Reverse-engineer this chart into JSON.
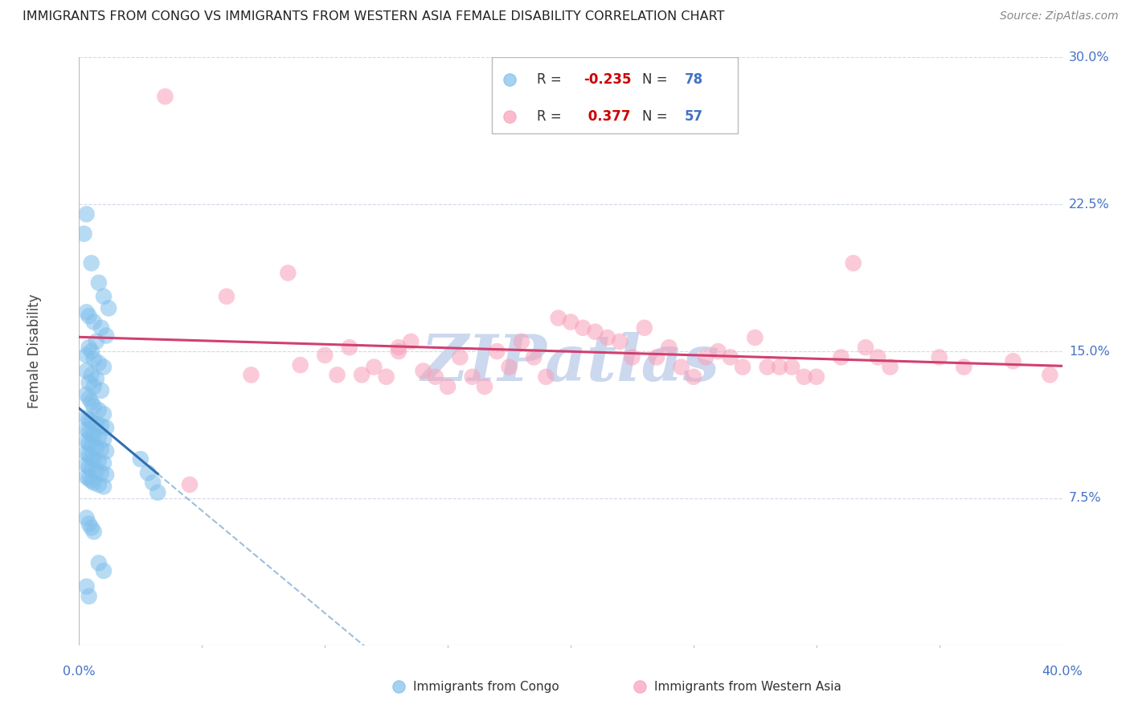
{
  "title": "IMMIGRANTS FROM CONGO VS IMMIGRANTS FROM WESTERN ASIA FEMALE DISABILITY CORRELATION CHART",
  "source": "Source: ZipAtlas.com",
  "ylabel": "Female Disability",
  "xlim": [
    0.0,
    0.4
  ],
  "ylim": [
    0.0,
    0.3
  ],
  "yticks": [
    0.0,
    0.075,
    0.15,
    0.225,
    0.3
  ],
  "ytick_labels": [
    "",
    "7.5%",
    "15.0%",
    "22.5%",
    "30.0%"
  ],
  "xtick_labels_show": [
    "0.0%",
    "40.0%"
  ],
  "legend_r1": "R = -0.235",
  "legend_n1": "N = 78",
  "legend_r2": "R =  0.377",
  "legend_n2": "N = 57",
  "color_congo": "#7fbfeb",
  "color_western_asia": "#f9a0b8",
  "color_line_congo": "#3070b0",
  "color_line_western_asia": "#d04070",
  "color_grid": "#d0d8ea",
  "background_color": "#ffffff",
  "watermark_text": "ZIPatlas",
  "watermark_color": "#ccd8ee",
  "congo_x": [
    0.002,
    0.003,
    0.005,
    0.008,
    0.01,
    0.012,
    0.003,
    0.004,
    0.006,
    0.009,
    0.011,
    0.007,
    0.004,
    0.005,
    0.003,
    0.006,
    0.008,
    0.01,
    0.003,
    0.005,
    0.007,
    0.004,
    0.006,
    0.009,
    0.003,
    0.004,
    0.005,
    0.006,
    0.008,
    0.01,
    0.003,
    0.004,
    0.005,
    0.007,
    0.009,
    0.011,
    0.003,
    0.004,
    0.005,
    0.006,
    0.008,
    0.01,
    0.003,
    0.004,
    0.005,
    0.007,
    0.009,
    0.011,
    0.003,
    0.004,
    0.005,
    0.006,
    0.008,
    0.01,
    0.003,
    0.004,
    0.005,
    0.007,
    0.009,
    0.011,
    0.003,
    0.004,
    0.005,
    0.006,
    0.008,
    0.01,
    0.025,
    0.028,
    0.03,
    0.032,
    0.003,
    0.004,
    0.005,
    0.006,
    0.008,
    0.01,
    0.003,
    0.004
  ],
  "congo_y": [
    0.21,
    0.22,
    0.195,
    0.185,
    0.178,
    0.172,
    0.17,
    0.168,
    0.165,
    0.162,
    0.158,
    0.155,
    0.152,
    0.15,
    0.148,
    0.146,
    0.144,
    0.142,
    0.14,
    0.138,
    0.136,
    0.134,
    0.132,
    0.13,
    0.128,
    0.126,
    0.124,
    0.122,
    0.12,
    0.118,
    0.116,
    0.115,
    0.114,
    0.113,
    0.112,
    0.111,
    0.11,
    0.109,
    0.108,
    0.107,
    0.106,
    0.105,
    0.104,
    0.103,
    0.102,
    0.101,
    0.1,
    0.099,
    0.098,
    0.097,
    0.096,
    0.095,
    0.094,
    0.093,
    0.092,
    0.091,
    0.09,
    0.089,
    0.088,
    0.087,
    0.086,
    0.085,
    0.084,
    0.083,
    0.082,
    0.081,
    0.095,
    0.088,
    0.083,
    0.078,
    0.065,
    0.062,
    0.06,
    0.058,
    0.042,
    0.038,
    0.03,
    0.025
  ],
  "western_asia_x": [
    0.035,
    0.06,
    0.085,
    0.1,
    0.11,
    0.115,
    0.12,
    0.125,
    0.13,
    0.135,
    0.14,
    0.145,
    0.15,
    0.155,
    0.16,
    0.165,
    0.17,
    0.175,
    0.18,
    0.185,
    0.19,
    0.195,
    0.2,
    0.205,
    0.21,
    0.215,
    0.22,
    0.225,
    0.23,
    0.235,
    0.24,
    0.245,
    0.25,
    0.255,
    0.26,
    0.265,
    0.27,
    0.275,
    0.28,
    0.285,
    0.29,
    0.295,
    0.3,
    0.31,
    0.315,
    0.32,
    0.325,
    0.33,
    0.35,
    0.36,
    0.38,
    0.395,
    0.045,
    0.07,
    0.09,
    0.105,
    0.13
  ],
  "western_asia_y": [
    0.28,
    0.178,
    0.19,
    0.148,
    0.152,
    0.138,
    0.142,
    0.137,
    0.15,
    0.155,
    0.14,
    0.137,
    0.132,
    0.147,
    0.137,
    0.132,
    0.15,
    0.142,
    0.155,
    0.147,
    0.137,
    0.167,
    0.165,
    0.162,
    0.16,
    0.157,
    0.155,
    0.147,
    0.162,
    0.147,
    0.152,
    0.142,
    0.137,
    0.147,
    0.15,
    0.147,
    0.142,
    0.157,
    0.142,
    0.142,
    0.142,
    0.137,
    0.137,
    0.147,
    0.195,
    0.152,
    0.147,
    0.142,
    0.147,
    0.142,
    0.145,
    0.138,
    0.082,
    0.138,
    0.143,
    0.138,
    0.152
  ]
}
